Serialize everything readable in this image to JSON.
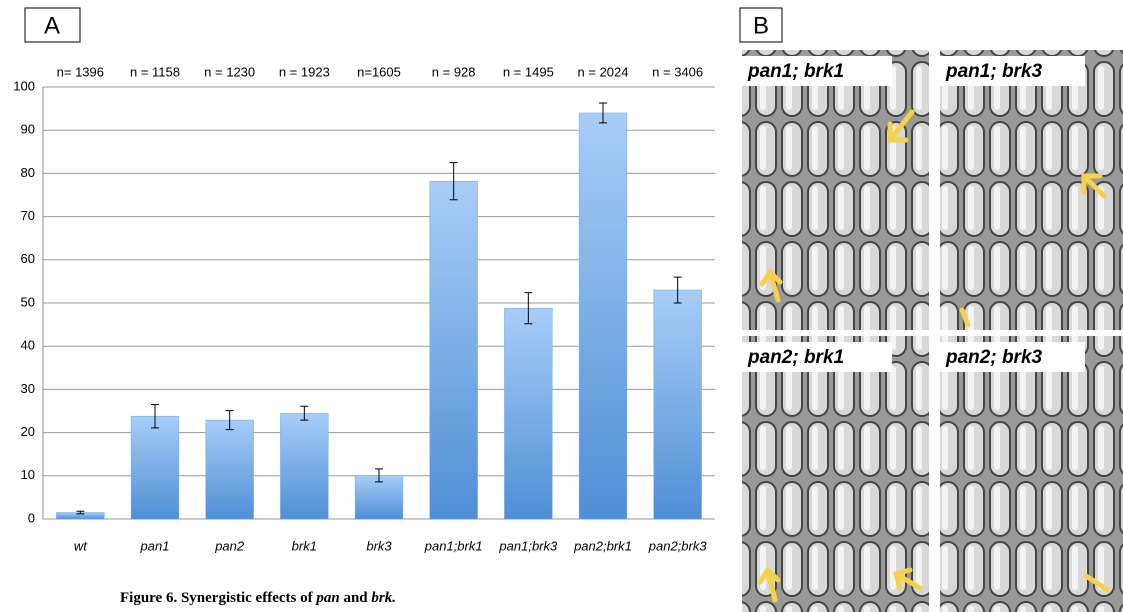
{
  "chart_data": {
    "type": "bar",
    "categories": [
      "wt",
      "pan1",
      "pan2",
      "brk1",
      "brk3",
      "pan1;brk1",
      "pan1;brk3",
      "pan2;brk1",
      "pan2;brk3"
    ],
    "values": [
      1.5,
      23.8,
      22.9,
      24.5,
      10.1,
      78.2,
      48.8,
      94,
      53
    ],
    "errors": [
      0.3,
      2.7,
      2.2,
      1.6,
      1.5,
      4.3,
      3.6,
      2.3,
      3
    ],
    "annotations": [
      "n= 1396",
      "n = 1158",
      "n = 1230",
      "n = 1923",
      "n=1605",
      "n = 928",
      "n = 1495",
      "n = 2024",
      "n = 3406"
    ],
    "color": "#6fa8e8",
    "ylim": [
      0,
      100
    ],
    "yticks": [
      0,
      10,
      20,
      30,
      40,
      50,
      60,
      70,
      80,
      90,
      100
    ],
    "grid": true
  },
  "panels": {
    "a": "A",
    "b": "B"
  },
  "images": [
    "pan1; brk1",
    "pan1; brk3",
    "pan2; brk1",
    "pan2; brk3"
  ],
  "caption": {
    "lead": "Figure 6. Synergistic effects of",
    "term1": "pan",
    "joiner": "and",
    "term2": "brk."
  }
}
